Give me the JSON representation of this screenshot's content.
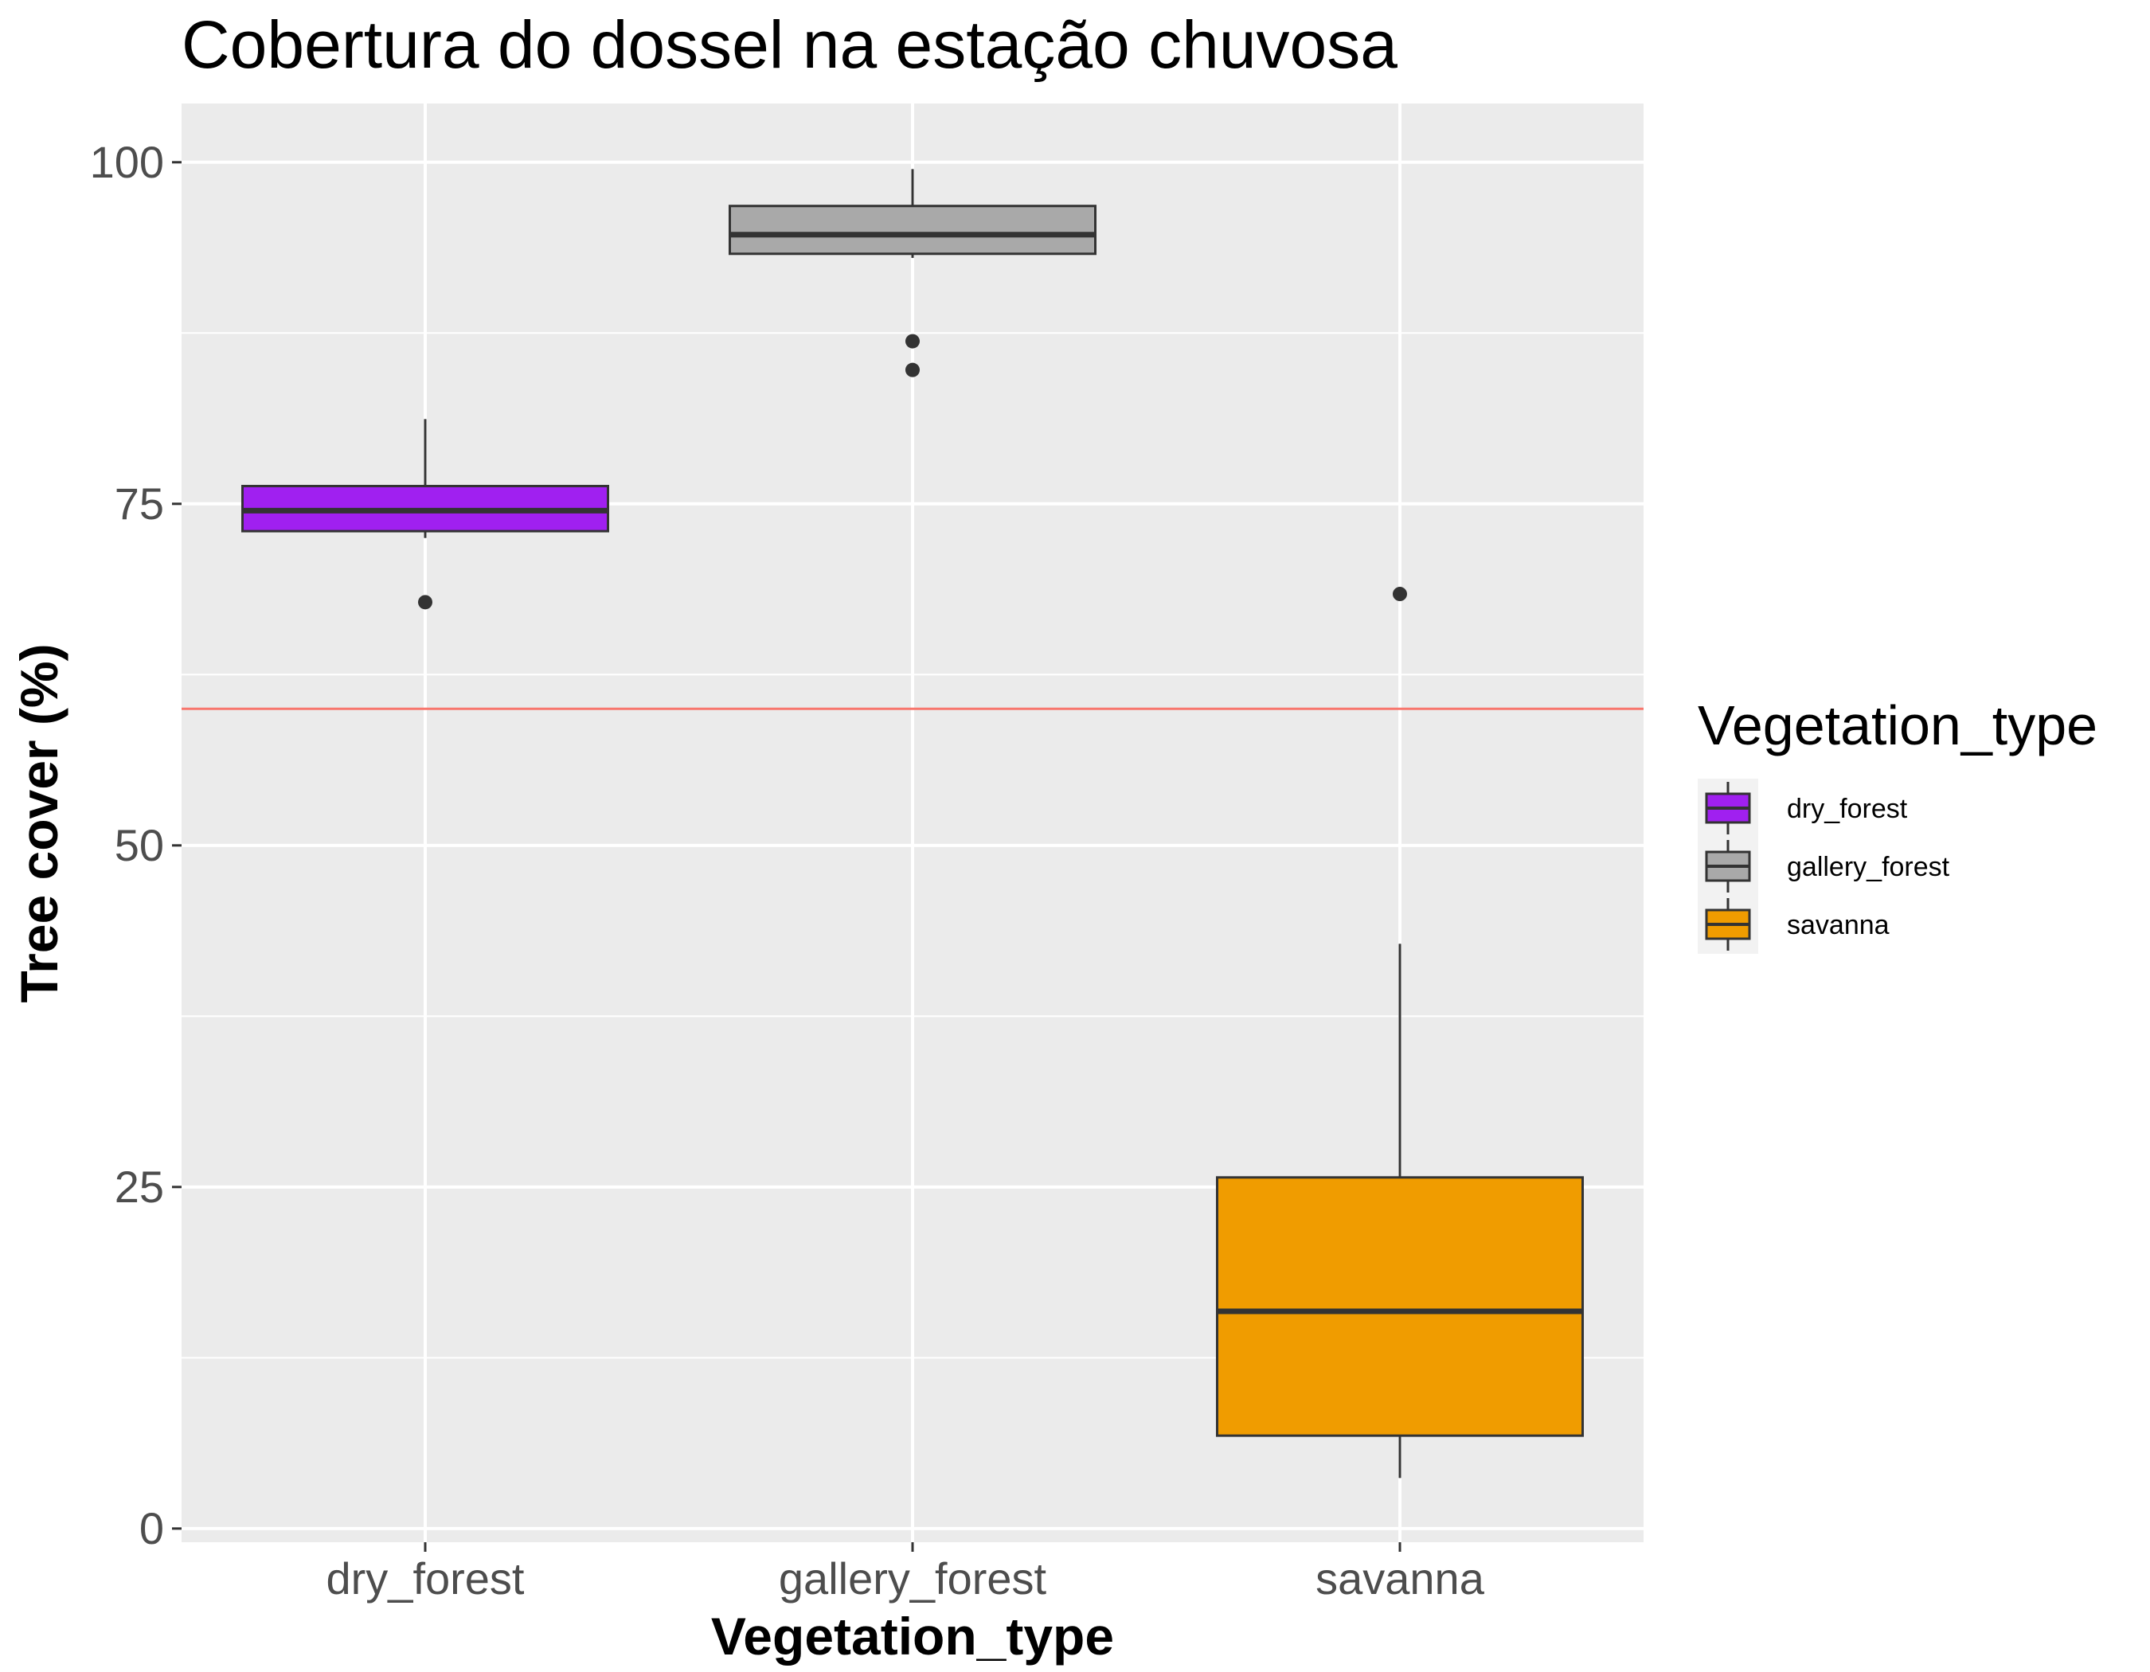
{
  "chart_data": {
    "type": "boxplot",
    "title": "Cobertura do dossel na estação chuvosa",
    "xlabel": "Vegetation_type",
    "ylabel": "Tree cover (%)",
    "ylim": [
      -1,
      104.3
    ],
    "yticks": [
      0,
      25,
      50,
      75,
      100
    ],
    "grid": true,
    "legend": {
      "title": "Vegetation_type",
      "position": "right",
      "items": [
        "dry_forest",
        "gallery_forest",
        "savanna"
      ]
    },
    "reference_line": {
      "y": 60,
      "color": "#f8766d"
    },
    "categories": [
      "dry_forest",
      "gallery_forest",
      "savanna"
    ],
    "boxes": [
      {
        "category": "dry_forest",
        "color": "#a020f0",
        "whisker_low": 72.5,
        "q1": 73.0,
        "median": 74.5,
        "q3": 76.3,
        "whisker_high": 81.2,
        "outliers": [
          67.8
        ]
      },
      {
        "category": "gallery_forest",
        "color": "#a9a9a9",
        "whisker_low": 93.0,
        "q1": 93.3,
        "median": 94.7,
        "q3": 96.8,
        "whisker_high": 99.5,
        "outliers": [
          86.9,
          84.8
        ]
      },
      {
        "category": "savanna",
        "color": "#f09c00",
        "whisker_low": 3.7,
        "q1": 6.8,
        "median": 15.9,
        "q3": 25.7,
        "whisker_high": 42.8,
        "outliers": [
          68.4
        ]
      }
    ]
  }
}
